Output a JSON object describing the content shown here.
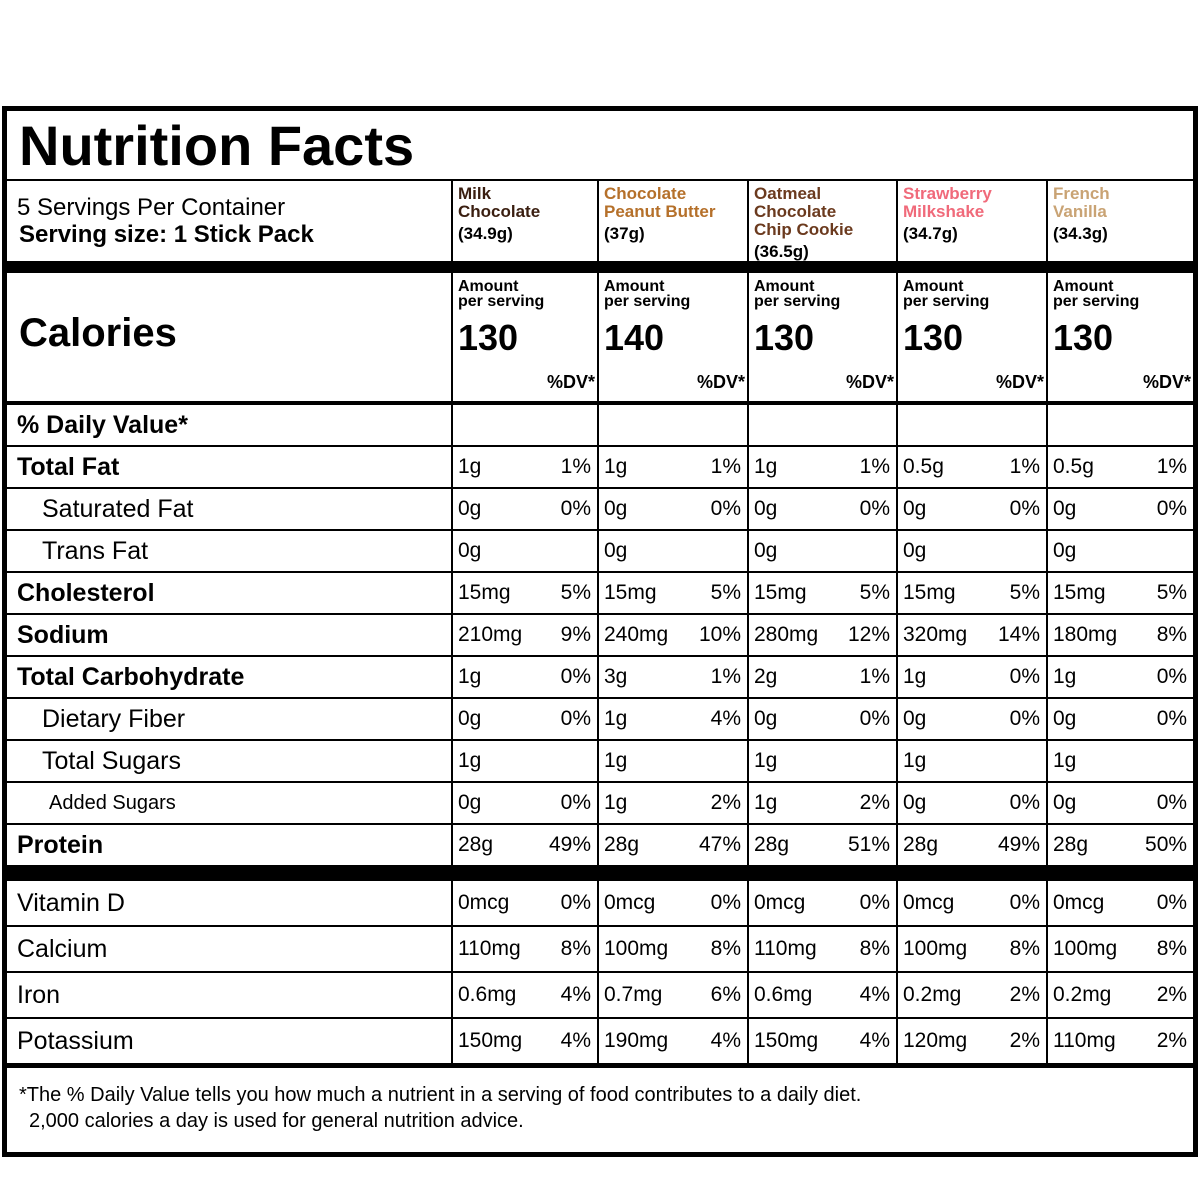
{
  "title": "Nutrition Facts",
  "servings_per_container": "5 Servings Per Container",
  "serving_size": "Serving size: 1 Stick Pack",
  "calories_label": "Calories",
  "amount_label_1": "Amount",
  "amount_label_2": "per serving",
  "dv_header": "%DV*",
  "dv_row_label": "% Daily Value*",
  "flavors": [
    {
      "name_1": "Milk",
      "name_2": "Chocolate",
      "weight": "(34.9g)",
      "color": "#3a1e10",
      "calories": "130"
    },
    {
      "name_1": "Chocolate",
      "name_2": "Peanut Butter",
      "weight": "(37g)",
      "color": "#b5702a",
      "calories": "140"
    },
    {
      "name_1": "Oatmeal Chocolate",
      "name_2": "Chip Cookie",
      "weight": "(36.5g)",
      "color": "#6b3a1e",
      "calories": "130"
    },
    {
      "name_1": "Strawberry",
      "name_2": "Milkshake",
      "weight": "(34.7g)",
      "color": "#f06a7a",
      "calories": "130"
    },
    {
      "name_1": "French",
      "name_2": "Vanilla",
      "weight": "(34.3g)",
      "color": "#c9a374",
      "calories": "130"
    }
  ],
  "rows": [
    {
      "label": "Total Fat",
      "style": "b",
      "values": [
        [
          "1g",
          "1%"
        ],
        [
          "1g",
          "1%"
        ],
        [
          "1g",
          "1%"
        ],
        [
          "0.5g",
          "1%"
        ],
        [
          "0.5g",
          "1%"
        ]
      ]
    },
    {
      "label": "Saturated Fat",
      "style": "i1",
      "values": [
        [
          "0g",
          "0%"
        ],
        [
          "0g",
          "0%"
        ],
        [
          "0g",
          "0%"
        ],
        [
          "0g",
          "0%"
        ],
        [
          "0g",
          "0%"
        ]
      ]
    },
    {
      "label": "Trans Fat",
      "style": "i1",
      "values": [
        [
          "0g",
          ""
        ],
        [
          "0g",
          ""
        ],
        [
          "0g",
          ""
        ],
        [
          "0g",
          ""
        ],
        [
          "0g",
          ""
        ]
      ]
    },
    {
      "label": "Cholesterol",
      "style": "b",
      "values": [
        [
          "15mg",
          "5%"
        ],
        [
          "15mg",
          "5%"
        ],
        [
          "15mg",
          "5%"
        ],
        [
          "15mg",
          "5%"
        ],
        [
          "15mg",
          "5%"
        ]
      ]
    },
    {
      "label": "Sodium",
      "style": "b",
      "values": [
        [
          "210mg",
          "9%"
        ],
        [
          "240mg",
          "10%"
        ],
        [
          "280mg",
          "12%"
        ],
        [
          "320mg",
          "14%"
        ],
        [
          "180mg",
          "8%"
        ]
      ]
    },
    {
      "label": "Total Carbohydrate",
      "style": "b",
      "values": [
        [
          "1g",
          "0%"
        ],
        [
          "3g",
          "1%"
        ],
        [
          "2g",
          "1%"
        ],
        [
          "1g",
          "0%"
        ],
        [
          "1g",
          "0%"
        ]
      ]
    },
    {
      "label": "Dietary Fiber",
      "style": "i1",
      "values": [
        [
          "0g",
          "0%"
        ],
        [
          "1g",
          "4%"
        ],
        [
          "0g",
          "0%"
        ],
        [
          "0g",
          "0%"
        ],
        [
          "0g",
          "0%"
        ]
      ]
    },
    {
      "label": "Total Sugars",
      "style": "i1",
      "values": [
        [
          "1g",
          ""
        ],
        [
          "1g",
          ""
        ],
        [
          "1g",
          ""
        ],
        [
          "1g",
          ""
        ],
        [
          "1g",
          ""
        ]
      ]
    },
    {
      "label": "Added Sugars",
      "style": "i2",
      "values": [
        [
          "0g",
          "0%"
        ],
        [
          "1g",
          "2%"
        ],
        [
          "1g",
          "2%"
        ],
        [
          "0g",
          "0%"
        ],
        [
          "0g",
          "0%"
        ]
      ]
    },
    {
      "label": "Protein",
      "style": "b thick",
      "values": [
        [
          "28g",
          "49%"
        ],
        [
          "28g",
          "47%"
        ],
        [
          "28g",
          "51%"
        ],
        [
          "28g",
          "49%"
        ],
        [
          "28g",
          "50%"
        ]
      ]
    },
    {
      "label": "Vitamin D",
      "style": "vit",
      "values": [
        [
          "0mcg",
          "0%"
        ],
        [
          "0mcg",
          "0%"
        ],
        [
          "0mcg",
          "0%"
        ],
        [
          "0mcg",
          "0%"
        ],
        [
          "0mcg",
          "0%"
        ]
      ]
    },
    {
      "label": "Calcium",
      "style": "vit",
      "values": [
        [
          "110mg",
          "8%"
        ],
        [
          "100mg",
          "8%"
        ],
        [
          "110mg",
          "8%"
        ],
        [
          "100mg",
          "8%"
        ],
        [
          "100mg",
          "8%"
        ]
      ]
    },
    {
      "label": "Iron",
      "style": "vit",
      "values": [
        [
          "0.6mg",
          "4%"
        ],
        [
          "0.7mg",
          "6%"
        ],
        [
          "0.6mg",
          "4%"
        ],
        [
          "0.2mg",
          "2%"
        ],
        [
          "0.2mg",
          "2%"
        ]
      ]
    },
    {
      "label": "Potassium",
      "style": "vit last",
      "values": [
        [
          "150mg",
          "4%"
        ],
        [
          "190mg",
          "4%"
        ],
        [
          "150mg",
          "4%"
        ],
        [
          "120mg",
          "2%"
        ],
        [
          "110mg",
          "2%"
        ]
      ]
    }
  ],
  "footnote_1": "*The % Daily Value tells you how much a nutrient in a serving of food contributes to a daily diet.",
  "footnote_2": "2,000 calories a day is used for general nutrition advice."
}
